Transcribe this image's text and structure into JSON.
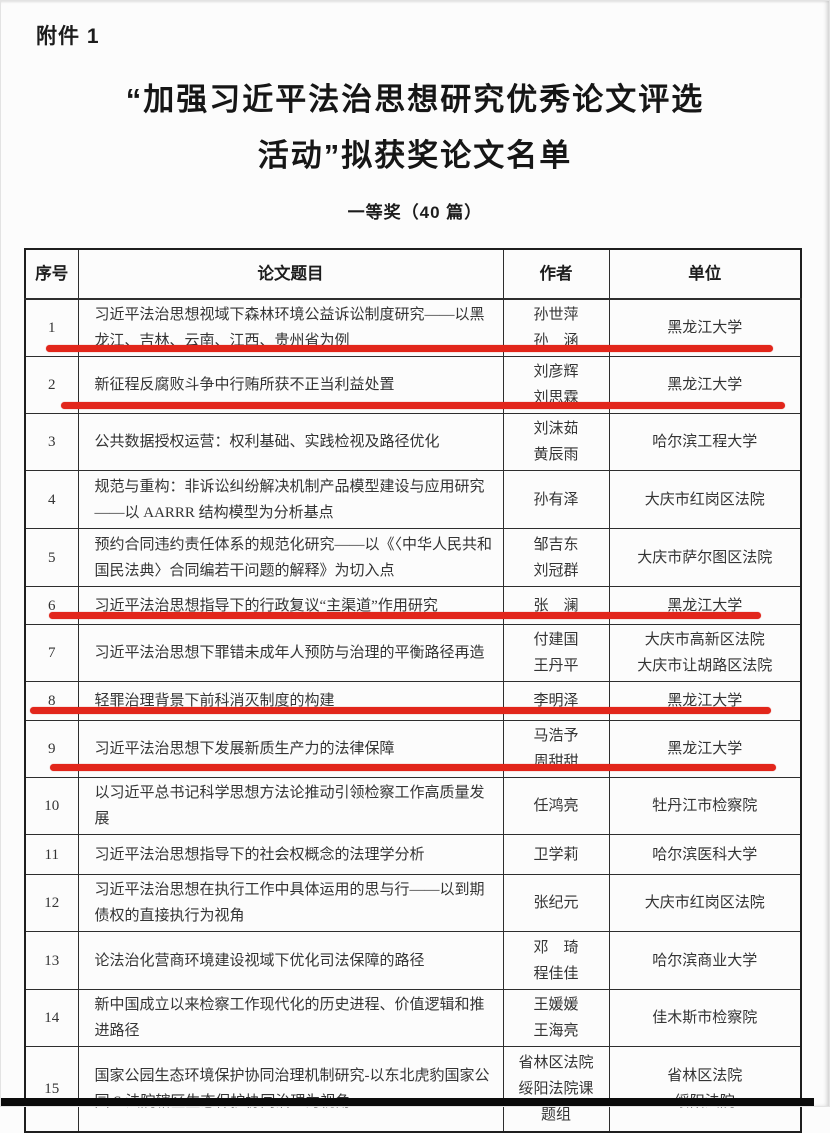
{
  "page": {
    "attachment_label": "附件 1",
    "title_line1": "“加强习近平法治思想研究优秀论文评选",
    "title_line2": "活动”拟获奖论文名单",
    "subtitle": "一等奖（40 篇）"
  },
  "table": {
    "headers": [
      "序号",
      "论文题目",
      "作者",
      "单位"
    ],
    "rows": [
      {
        "no": "1",
        "title": "习近平法治思想视域下森林环境公益诉讼制度研究——以黑龙江、吉林、云南、江西、贵州省为例",
        "authors": [
          "孙世萍",
          "孙　涵"
        ],
        "unit": [
          "黑龙江大学"
        ],
        "underlined": true
      },
      {
        "no": "2",
        "title": "新征程反腐败斗争中行贿所获不正当利益处置",
        "authors": [
          "刘彦辉",
          "刘思霖"
        ],
        "unit": [
          "黑龙江大学"
        ],
        "underlined": true
      },
      {
        "no": "3",
        "title": "公共数据授权运营：权利基础、实践检视及路径优化",
        "authors": [
          "刘沫茹",
          "黄辰雨"
        ],
        "unit": [
          "哈尔滨工程大学"
        ],
        "underlined": false
      },
      {
        "no": "4",
        "title": "规范与重构：非诉讼纠纷解决机制产品模型建设与应用研究——以 AARRR 结构模型为分析基点",
        "authors": [
          "孙有泽"
        ],
        "unit": [
          "大庆市红岗区法院"
        ],
        "underlined": false
      },
      {
        "no": "5",
        "title": "预约合同违约责任体系的规范化研究——以《〈中华人民共和国民法典〉合同编若干问题的解释》为切入点",
        "authors": [
          "邹吉东",
          "刘冠群"
        ],
        "unit": [
          "大庆市萨尔图区法院"
        ],
        "underlined": false
      },
      {
        "no": "6",
        "title": "习近平法治思想指导下的行政复议“主渠道”作用研究",
        "authors": [
          "张　澜"
        ],
        "unit": [
          "黑龙江大学"
        ],
        "underlined": true
      },
      {
        "no": "7",
        "title": "习近平法治思想下罪错未成年人预防与治理的平衡路径再造",
        "authors": [
          "付建国",
          "王丹平"
        ],
        "unit": [
          "大庆市高新区法院",
          "大庆市让胡路区法院"
        ],
        "underlined": false
      },
      {
        "no": "8",
        "title": "轻罪治理背景下前科消灭制度的构建",
        "authors": [
          "李明泽"
        ],
        "unit": [
          "黑龙江大学"
        ],
        "underlined": true
      },
      {
        "no": "9",
        "title": "习近平法治思想下发展新质生产力的法律保障",
        "authors": [
          "马浩予",
          "周甜甜"
        ],
        "unit": [
          "黑龙江大学"
        ],
        "underlined": true
      },
      {
        "no": "10",
        "title": "以习近平总书记科学思想方法论推动引领检察工作高质量发展",
        "authors": [
          "任鸿亮"
        ],
        "unit": [
          "牡丹江市检察院"
        ],
        "underlined": false
      },
      {
        "no": "11",
        "title": "习近平法治思想指导下的社会权概念的法理学分析",
        "authors": [
          "卫学莉"
        ],
        "unit": [
          "哈尔滨医科大学"
        ],
        "underlined": false
      },
      {
        "no": "12",
        "title": "习近平法治思想在执行工作中具体运用的思与行——以到期债权的直接执行为视角",
        "authors": [
          "张纪元"
        ],
        "unit": [
          "大庆市红岗区法院"
        ],
        "underlined": false
      },
      {
        "no": "13",
        "title": "论法治化营商环境建设视域下优化司法保障的路径",
        "authors": [
          "邓　琦",
          "程佳佳"
        ],
        "unit": [
          "哈尔滨商业大学"
        ],
        "underlined": false
      },
      {
        "no": "14",
        "title": "新中国成立以来检察工作现代化的历史进程、价值逻辑和推进路径",
        "authors": [
          "王媛媛",
          "王海亮"
        ],
        "unit": [
          "佳木斯市检察院"
        ],
        "underlined": false
      },
      {
        "no": "15",
        "title": "国家公园生态环境保护协同治理机制研究-以东北虎豹国家公园 S 法院辖区生态保护协同治理为视角",
        "authors": [
          "省林区法院",
          "绥阳法院课",
          "题组"
        ],
        "unit": [
          "省林区法院",
          "绥阳法院"
        ],
        "underlined": false
      }
    ]
  },
  "annotations": {
    "underline_color": "#e2261b",
    "underlined_rows": [
      1,
      2,
      6,
      8,
      9
    ]
  }
}
